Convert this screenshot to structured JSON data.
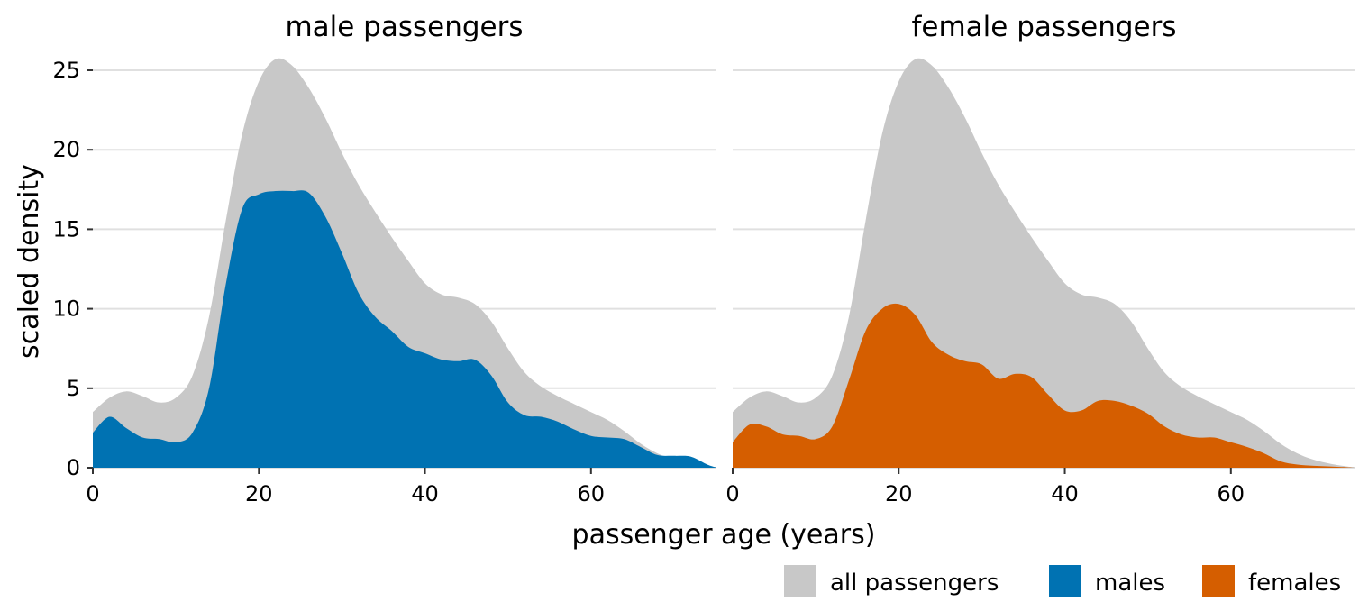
{
  "chart_data": {
    "type": "area",
    "xlabel": "passenger age (years)",
    "ylabel": "scaled density",
    "xlim": [
      0,
      75
    ],
    "ylim": [
      0,
      25
    ],
    "x_ticks": [
      0,
      20,
      40,
      60
    ],
    "y_ticks": [
      0,
      5,
      10,
      15,
      20,
      25
    ],
    "grid": "horizontal",
    "legend_position": "bottom-right",
    "legend": [
      {
        "label": "all passengers",
        "color": "#c8c8c8"
      },
      {
        "label": "males",
        "color": "#0072b2"
      },
      {
        "label": "females",
        "color": "#d55e00"
      }
    ],
    "all_passengers": {
      "x": [
        0,
        2,
        4,
        6,
        8,
        10,
        12,
        14,
        16,
        18,
        20,
        22,
        24,
        26,
        28,
        30,
        32,
        34,
        36,
        38,
        40,
        42,
        44,
        46,
        48,
        50,
        52,
        54,
        56,
        58,
        60,
        62,
        64,
        66,
        68,
        70,
        72,
        74,
        75
      ],
      "y": [
        3.5,
        4.4,
        4.8,
        4.5,
        4.1,
        4.4,
        5.8,
        9.5,
        15.5,
        21.0,
        24.3,
        25.7,
        25.3,
        23.9,
        22.0,
        19.8,
        17.8,
        16.1,
        14.5,
        13.0,
        11.6,
        10.9,
        10.7,
        10.3,
        9.2,
        7.5,
        6.0,
        5.1,
        4.5,
        4.0,
        3.5,
        3.0,
        2.3,
        1.5,
        0.9,
        0.5,
        0.25,
        0.08,
        0.03
      ]
    },
    "panels": [
      {
        "title": "male passengers",
        "series": {
          "name": "males",
          "x": [
            0,
            2,
            4,
            6,
            8,
            10,
            12,
            14,
            16,
            18,
            20,
            22,
            24,
            26,
            28,
            30,
            32,
            34,
            36,
            38,
            40,
            42,
            44,
            46,
            48,
            50,
            52,
            54,
            56,
            58,
            60,
            62,
            64,
            66,
            68,
            70,
            72,
            74,
            75
          ],
          "y": [
            2.2,
            3.2,
            2.5,
            1.9,
            1.8,
            1.6,
            2.2,
            5.0,
            11.5,
            16.3,
            17.2,
            17.4,
            17.4,
            17.3,
            15.8,
            13.5,
            11.0,
            9.5,
            8.6,
            7.6,
            7.2,
            6.8,
            6.7,
            6.8,
            5.8,
            4.1,
            3.3,
            3.2,
            2.9,
            2.4,
            2.0,
            1.9,
            1.8,
            1.3,
            0.8,
            0.75,
            0.7,
            0.2,
            0.03
          ]
        }
      },
      {
        "title": "female passengers",
        "series": {
          "name": "females",
          "x": [
            0,
            2,
            4,
            6,
            8,
            10,
            12,
            14,
            16,
            18,
            20,
            22,
            24,
            26,
            28,
            30,
            32,
            34,
            36,
            38,
            40,
            42,
            44,
            46,
            48,
            50,
            52,
            54,
            56,
            58,
            60,
            62,
            64,
            66,
            68,
            70,
            72,
            74,
            75
          ],
          "y": [
            1.6,
            2.7,
            2.6,
            2.1,
            2.0,
            1.8,
            2.6,
            5.5,
            8.6,
            10.0,
            10.3,
            9.6,
            7.9,
            7.1,
            6.7,
            6.5,
            5.6,
            5.9,
            5.7,
            4.6,
            3.6,
            3.6,
            4.2,
            4.2,
            3.9,
            3.4,
            2.6,
            2.1,
            1.9,
            1.9,
            1.6,
            1.3,
            0.9,
            0.4,
            0.2,
            0.12,
            0.08,
            0.03,
            0.0
          ]
        }
      }
    ]
  }
}
